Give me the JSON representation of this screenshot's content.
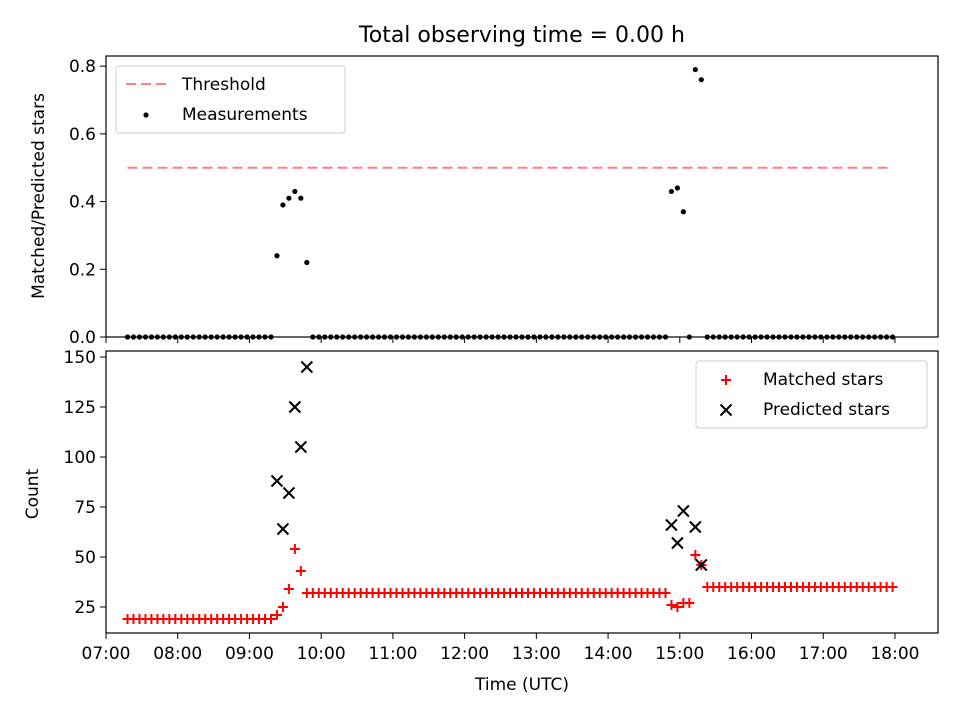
{
  "chart_data": [
    {
      "type": "scatter",
      "title": "Total observing time = 0.00 h",
      "xlabel": "",
      "ylabel": "Matched/Predicted stars",
      "ylim": [
        0,
        0.83
      ],
      "xlim": [
        "07:00",
        "18:36"
      ],
      "x_ticks": [
        "07:00",
        "08:00",
        "09:00",
        "10:00",
        "11:00",
        "12:00",
        "13:00",
        "14:00",
        "15:00",
        "16:00",
        "17:00",
        "18:00"
      ],
      "y_ticks": [
        0.0,
        0.2,
        0.4,
        0.6,
        0.8
      ],
      "y_tick_labels": [
        "0.0",
        "0.2",
        "0.4",
        "0.6",
        "0.8"
      ],
      "legend_position": "top-left",
      "threshold": {
        "name": "Threshold",
        "value": 0.5,
        "x_range": [
          "07:18",
          "17:58"
        ],
        "color": "#ff7f7f",
        "style": "dashed"
      },
      "series": [
        {
          "name": "Measurements",
          "color": "#000000",
          "marker": "dot",
          "zero_run_1": {
            "from": "07:18",
            "to": "09:18",
            "step_min": 5,
            "value": 0
          },
          "zero_run_2": {
            "from": "09:53",
            "to": "14:48",
            "step_min": 5,
            "value": 0
          },
          "zero_run_3": {
            "from": "15:23",
            "to": "17:58",
            "step_min": 5,
            "value": 0
          },
          "points": [
            {
              "x": "09:23",
              "y": 0.24
            },
            {
              "x": "09:28",
              "y": 0.39
            },
            {
              "x": "09:33",
              "y": 0.41
            },
            {
              "x": "09:38",
              "y": 0.43
            },
            {
              "x": "09:43",
              "y": 0.41
            },
            {
              "x": "09:48",
              "y": 0.22
            },
            {
              "x": "14:53",
              "y": 0.43
            },
            {
              "x": "14:58",
              "y": 0.44
            },
            {
              "x": "15:03",
              "y": 0.37
            },
            {
              "x": "15:08",
              "y": 0.0
            },
            {
              "x": "15:13",
              "y": 0.79
            },
            {
              "x": "15:18",
              "y": 0.76
            }
          ]
        }
      ]
    },
    {
      "type": "scatter",
      "title": "",
      "xlabel": "Time (UTC)",
      "ylabel": "Count",
      "ylim": [
        12,
        153
      ],
      "xlim": [
        "07:00",
        "18:36"
      ],
      "x_ticks": [
        "07:00",
        "08:00",
        "09:00",
        "10:00",
        "11:00",
        "12:00",
        "13:00",
        "14:00",
        "15:00",
        "16:00",
        "17:00",
        "18:00"
      ],
      "y_ticks": [
        25,
        50,
        75,
        100,
        125,
        150
      ],
      "legend_position": "top-right",
      "series": [
        {
          "name": "Matched stars",
          "color": "#ff0000",
          "marker": "plus",
          "run_1": {
            "from": "07:18",
            "to": "09:18",
            "step_min": 5,
            "value": 19
          },
          "run_2": {
            "from": "09:48",
            "to": "14:48",
            "step_min": 5,
            "value": 32
          },
          "run_3": {
            "from": "15:23",
            "to": "17:58",
            "step_min": 5,
            "value": 35
          },
          "points": [
            {
              "x": "09:23",
              "y": 21
            },
            {
              "x": "09:28",
              "y": 25
            },
            {
              "x": "09:33",
              "y": 34
            },
            {
              "x": "09:38",
              "y": 54
            },
            {
              "x": "09:43",
              "y": 43
            },
            {
              "x": "14:53",
              "y": 26
            },
            {
              "x": "14:58",
              "y": 25
            },
            {
              "x": "15:03",
              "y": 27
            },
            {
              "x": "15:08",
              "y": 27
            },
            {
              "x": "15:13",
              "y": 51
            },
            {
              "x": "15:18",
              "y": 46
            }
          ]
        },
        {
          "name": "Predicted stars",
          "color": "#000000",
          "marker": "x",
          "points": [
            {
              "x": "09:23",
              "y": 88
            },
            {
              "x": "09:28",
              "y": 64
            },
            {
              "x": "09:33",
              "y": 82
            },
            {
              "x": "09:38",
              "y": 125
            },
            {
              "x": "09:43",
              "y": 105
            },
            {
              "x": "09:48",
              "y": 145
            },
            {
              "x": "14:53",
              "y": 66
            },
            {
              "x": "14:58",
              "y": 57
            },
            {
              "x": "15:03",
              "y": 73
            },
            {
              "x": "15:13",
              "y": 65
            },
            {
              "x": "15:18",
              "y": 46
            }
          ]
        }
      ]
    }
  ]
}
